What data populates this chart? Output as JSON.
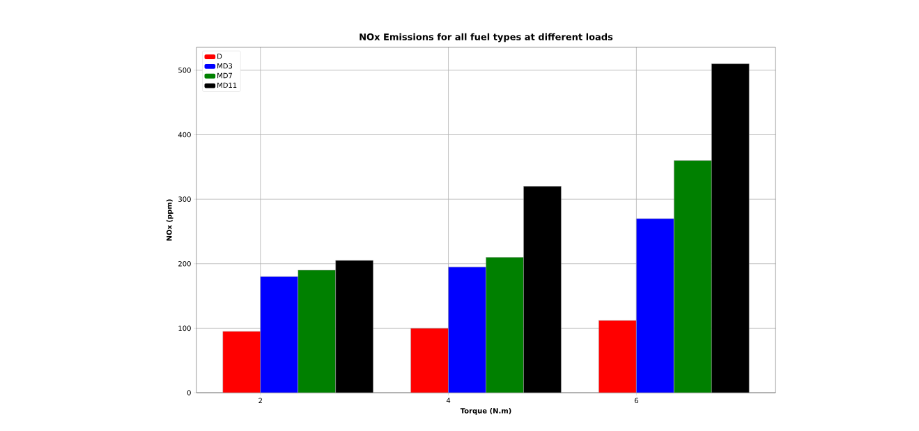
{
  "chart_data": {
    "type": "bar",
    "title": "NOx Emissions for all fuel types at different loads",
    "xlabel": "Torque (N.m)",
    "ylabel": "NOx (ppm)",
    "x": [
      2,
      4,
      6
    ],
    "series": [
      {
        "name": "D",
        "color": "#ff0000",
        "values": [
          95,
          100,
          112
        ]
      },
      {
        "name": "MD3",
        "color": "#0000ff",
        "values": [
          180,
          195,
          270
        ]
      },
      {
        "name": "MD7",
        "color": "#008000",
        "values": [
          190,
          210,
          360
        ]
      },
      {
        "name": "MD11",
        "color": "#000000",
        "values": [
          205,
          320,
          510
        ]
      }
    ],
    "xlim": [
      1.32,
      7.48
    ],
    "xticks": [
      2,
      4,
      6
    ],
    "ylim": [
      0,
      535.5
    ],
    "yticks": [
      0,
      100,
      200,
      300,
      400,
      500
    ],
    "grid": true,
    "legend": "top left"
  }
}
